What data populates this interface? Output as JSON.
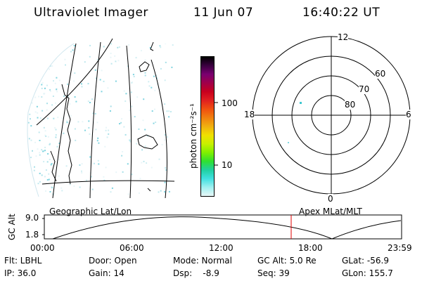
{
  "header": {
    "title": "Ultraviolet Imager",
    "date": "11 Jun 07",
    "time": "16:40:22 UT"
  },
  "colorbar": {
    "label": "photon cm⁻²s⁻¹",
    "ticks": [
      "100",
      "10"
    ],
    "colors": [
      "#000000",
      "#3a0040",
      "#7a0070",
      "#a0004a",
      "#c8001e",
      "#e02020",
      "#f05010",
      "#f08010",
      "#f0b010",
      "#f0e000",
      "#c8f000",
      "#80f000",
      "#30e030",
      "#20d0a0",
      "#40e0e0",
      "#a0f0f0",
      "#e8f8f8"
    ]
  },
  "geo_label": "Geographic Lat/Lon",
  "apex_label": "Apex MLat/MLT",
  "polar": {
    "mlt_labels": {
      "top": "12",
      "bottom": "0",
      "left": "18",
      "right": "6"
    },
    "lat_labels": [
      "60",
      "70",
      "80"
    ]
  },
  "altitude_plot": {
    "ylabel": "GC Alt",
    "yticks": [
      "9.0",
      "1.8"
    ],
    "xticks": [
      "00:00",
      "06:00",
      "12:00",
      "18:00",
      "23:59"
    ],
    "marker_color": "#e00000"
  },
  "info": {
    "flt": "Flt: LBHL",
    "ip": "IP: 36.0",
    "door": "Door: Open",
    "gain": "Gain: 14",
    "mode": "Mode: Normal",
    "dsp": "Dsp:    -8.9",
    "gcalt": "GC Alt: 5.0 Re",
    "seq": "Seq: 39",
    "glat": "GLat: -56.9",
    "glon": "GLon: 155.7"
  }
}
